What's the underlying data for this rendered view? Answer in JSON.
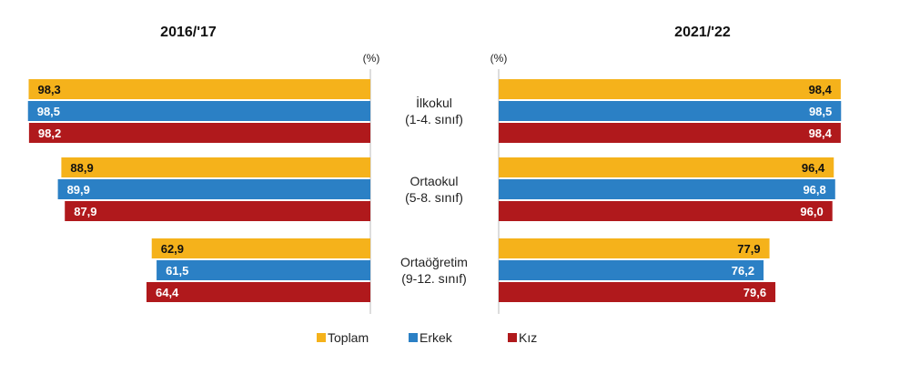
{
  "chart_data": {
    "type": "bar",
    "orientation": "horizontal",
    "unit": "(%)",
    "categories": [
      {
        "name": "İlkokul",
        "sub": "(1-4. sınıf)"
      },
      {
        "name": "Ortaokul",
        "sub": "(5-8. sınıf)"
      },
      {
        "name": "Ortaöğretim",
        "sub": "(9-12. sınıf)"
      }
    ],
    "panels": [
      {
        "title": "2016/'17",
        "direction": "left",
        "series": [
          {
            "name": "Toplam",
            "values": [
              98.3,
              88.9,
              62.9
            ]
          },
          {
            "name": "Erkek",
            "values": [
              98.5,
              89.9,
              61.5
            ]
          },
          {
            "name": "Kız",
            "values": [
              98.2,
              87.9,
              64.4
            ]
          }
        ]
      },
      {
        "title": "2021/'22",
        "direction": "right",
        "series": [
          {
            "name": "Toplam",
            "values": [
              98.4,
              96.4,
              77.9
            ]
          },
          {
            "name": "Erkek",
            "values": [
              98.5,
              96.8,
              76.2
            ]
          },
          {
            "name": "Kız",
            "values": [
              98.4,
              96.0,
              79.6
            ]
          }
        ]
      }
    ],
    "legend": [
      "Toplam",
      "Erkek",
      "Kız"
    ],
    "legend_position": "bottom",
    "colors": [
      "#F5B21B",
      "#2B80C5",
      "#B0191C"
    ],
    "xlim": [
      0,
      100
    ]
  }
}
